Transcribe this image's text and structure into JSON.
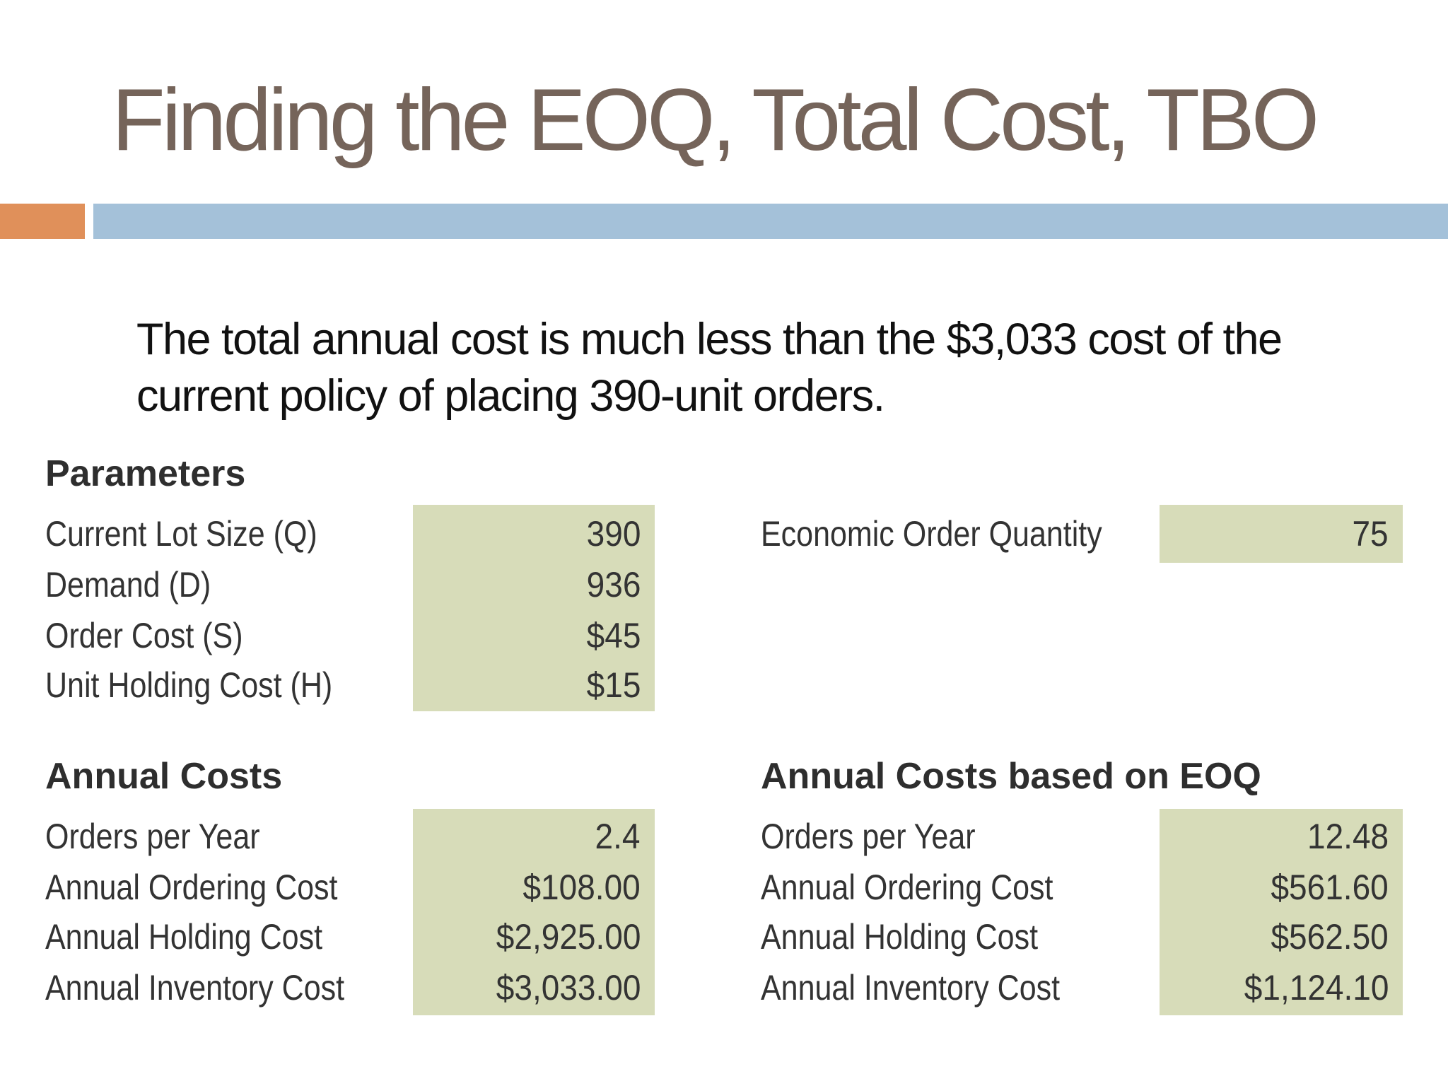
{
  "title": "Finding the EOQ, Total Cost, TBO",
  "body_text": "The total annual cost is much less than the $3,033 cost of the current policy of placing 390-unit orders.",
  "colors": {
    "title": "#75645a",
    "accent_orange": "#e0905a",
    "accent_blue": "#a4c1d9",
    "value_fill": "#d7dcb9"
  },
  "parameters": {
    "heading": "Parameters",
    "rows": [
      {
        "label": "Current Lot Size (Q)",
        "value": "390"
      },
      {
        "label": "Demand (D)",
        "value": "936"
      },
      {
        "label": "Order Cost (S)",
        "value": "$45"
      },
      {
        "label": "Unit Holding Cost (H)",
        "value": "$15"
      }
    ]
  },
  "eoq": {
    "label": "Economic Order Quantity",
    "value": "75"
  },
  "annual_costs": {
    "heading": "Annual Costs",
    "rows": [
      {
        "label": "Orders per Year",
        "value": "2.4"
      },
      {
        "label": "Annual Ordering Cost",
        "value": "$108.00"
      },
      {
        "label": "Annual Holding Cost",
        "value": "$2,925.00"
      },
      {
        "label": "Annual Inventory Cost",
        "value": "$3,033.00"
      }
    ]
  },
  "annual_costs_eoq": {
    "heading": "Annual Costs based on EOQ",
    "rows": [
      {
        "label": "Orders per Year",
        "value": "12.48"
      },
      {
        "label": "Annual Ordering Cost",
        "value": "$561.60"
      },
      {
        "label": "Annual Holding Cost",
        "value": "$562.50"
      },
      {
        "label": "Annual Inventory Cost",
        "value": "$1,124.10"
      }
    ]
  }
}
